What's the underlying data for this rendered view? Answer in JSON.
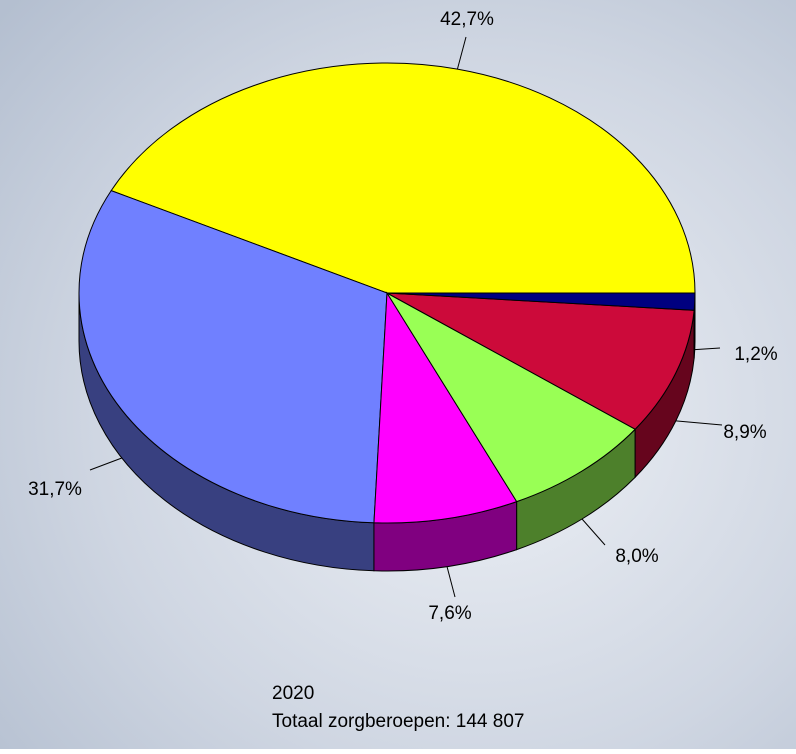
{
  "chart_data": {
    "type": "pie3d",
    "values": [
      42.7,
      31.7,
      7.6,
      8.0,
      8.9,
      1.2
    ],
    "value_labels": [
      "42,7%",
      "31,7%",
      "7,6%",
      "8,0%",
      "8,9%",
      "1,2%"
    ],
    "colors": [
      "#ffff00",
      "#7080ff",
      "#ff00ff",
      "#99ff55",
      "#cc0a3a",
      "#000080"
    ],
    "annotations": [
      "2020",
      "Totaal zorgberoepen: 144 807"
    ]
  }
}
